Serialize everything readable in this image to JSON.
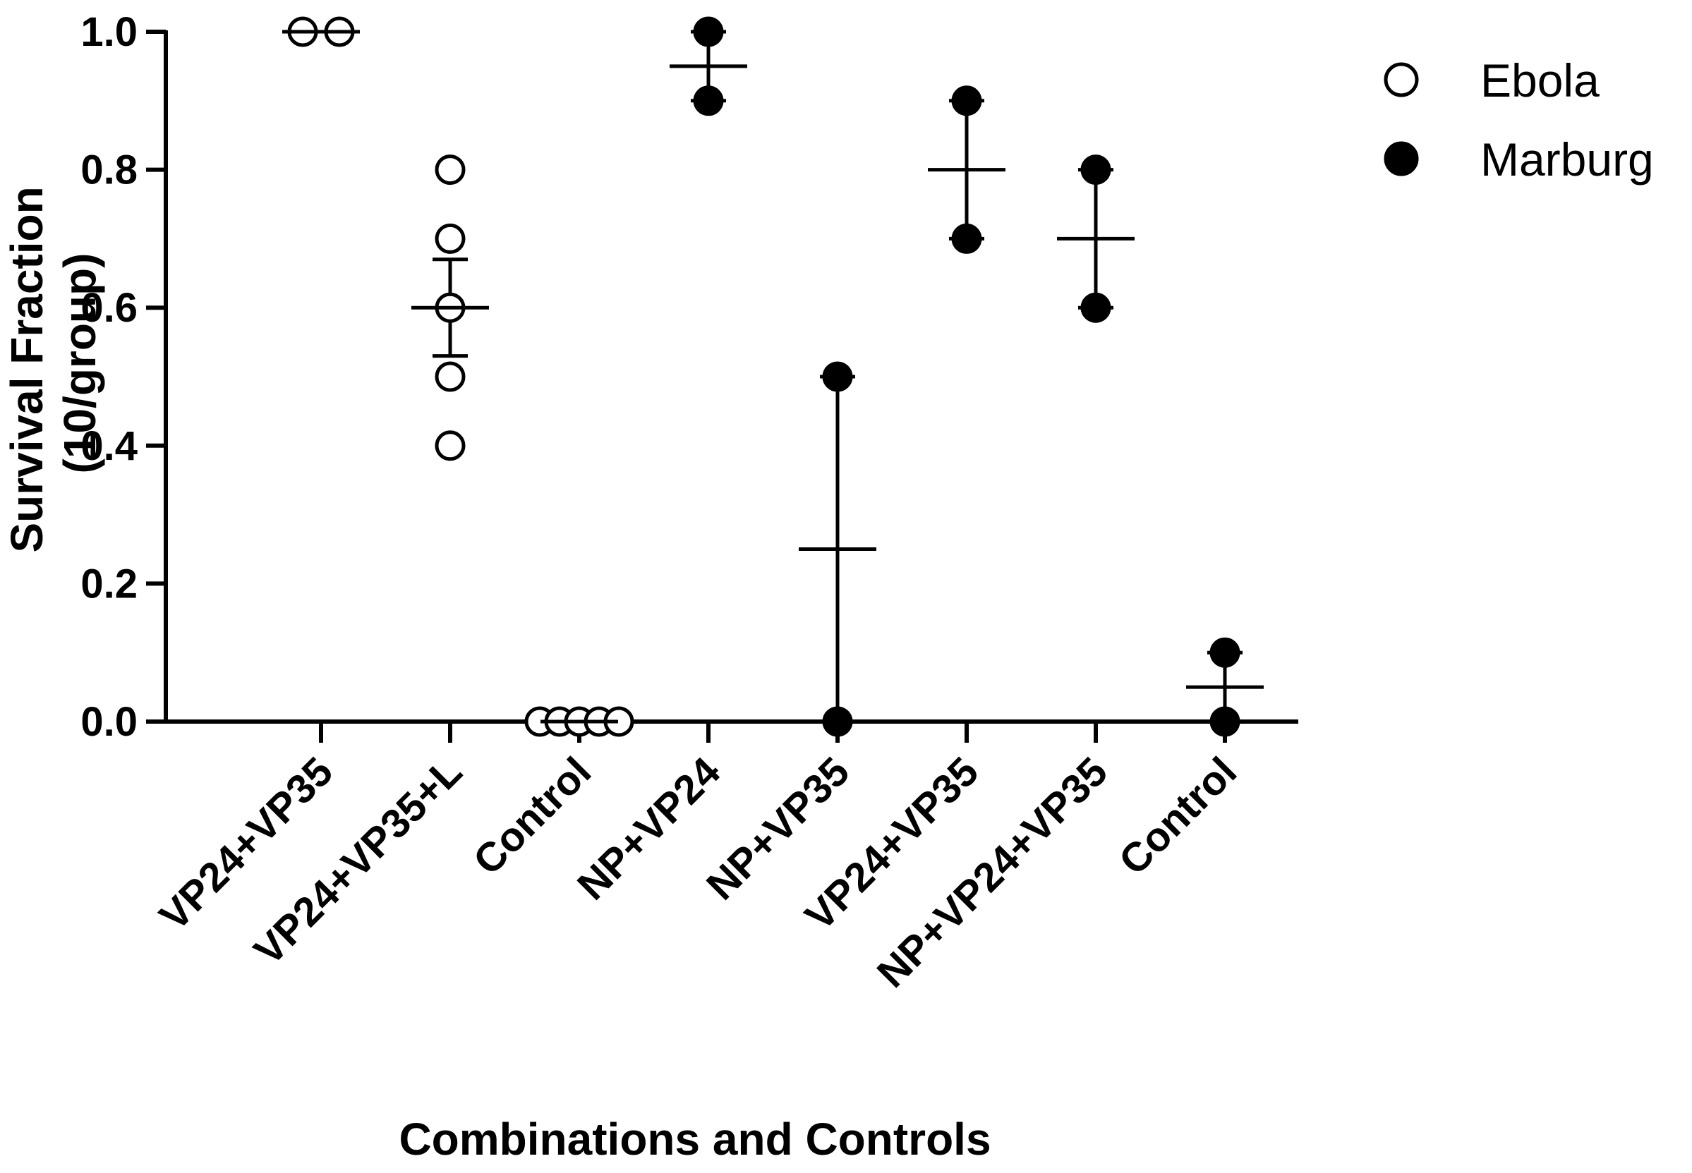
{
  "chart_data": {
    "type": "scatter",
    "subtype": "dot-plot-with-mean-and-sem",
    "xlabel": "Combinations and Controls",
    "ylabel_lines": [
      "Survival Fraction",
      "(10/group)"
    ],
    "ylim": [
      0,
      1.0
    ],
    "yticks": [
      "0.0",
      "0.2",
      "0.4",
      "0.6",
      "0.8",
      "1.0"
    ],
    "grid": false,
    "legend_position": "top-right",
    "legend": [
      {
        "label": "Ebola",
        "marker": "open-circle"
      },
      {
        "label": "Marburg",
        "marker": "filled-circle"
      }
    ],
    "categories": [
      "VP24+VP35",
      "VP24+VP35+L",
      "Control",
      "NP+VP24",
      "NP+VP35",
      "VP24+VP35",
      "NP+VP24+VP35",
      "Control"
    ],
    "groups": [
      {
        "category": "VP24+VP35",
        "series": "Ebola",
        "points": [
          1.0,
          1.0
        ],
        "mean": 1.0,
        "sem": 0.0
      },
      {
        "category": "VP24+VP35+L",
        "series": "Ebola",
        "points": [
          0.8,
          0.7,
          0.6,
          0.5,
          0.4
        ],
        "mean": 0.6,
        "sem": 0.07
      },
      {
        "category": "Control",
        "series": "Ebola",
        "points": [
          0.0,
          0.0,
          0.0,
          0.0,
          0.0
        ],
        "mean": 0.0,
        "sem": 0.0
      },
      {
        "category": "NP+VP24",
        "series": "Marburg",
        "points": [
          1.0,
          0.9
        ],
        "mean": 0.95,
        "sem": 0.05
      },
      {
        "category": "NP+VP35",
        "series": "Marburg",
        "points": [
          0.5,
          0.0
        ],
        "mean": 0.25,
        "sem": 0.25
      },
      {
        "category": "VP24+VP35",
        "series": "Marburg",
        "points": [
          0.9,
          0.7
        ],
        "mean": 0.8,
        "sem": 0.1
      },
      {
        "category": "NP+VP24+VP35",
        "series": "Marburg",
        "points": [
          0.8,
          0.6
        ],
        "mean": 0.7,
        "sem": 0.1
      },
      {
        "category": "Control",
        "series": "Marburg",
        "points": [
          0.1,
          0.0
        ],
        "mean": 0.05,
        "sem": 0.05
      }
    ]
  }
}
